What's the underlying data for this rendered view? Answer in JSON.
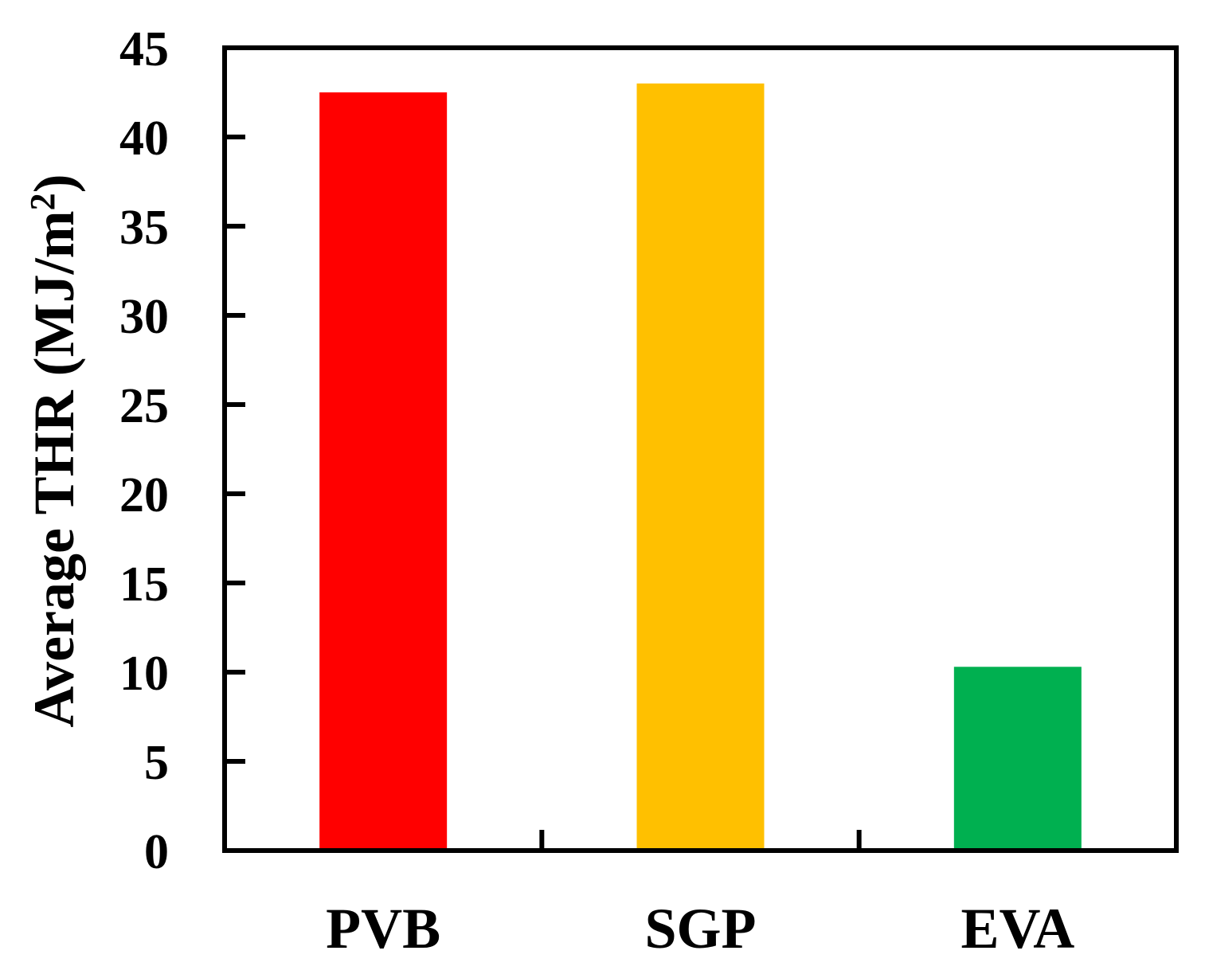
{
  "chart_data": {
    "type": "bar",
    "categories": [
      "PVB",
      "SGP",
      "EVA"
    ],
    "values": [
      42.5,
      43.0,
      10.3
    ],
    "colors": [
      "#ff0000",
      "#ffc000",
      "#00b050"
    ],
    "ylabel": {
      "prefix": "Average THR  (MJ/m",
      "superscript": "2",
      "suffix": ")"
    },
    "ylim": [
      0,
      45
    ],
    "yticks": [
      "0",
      "5",
      "10",
      "15",
      "20",
      "25",
      "30",
      "35",
      "40",
      "45"
    ],
    "grid": false,
    "legend": "none"
  }
}
